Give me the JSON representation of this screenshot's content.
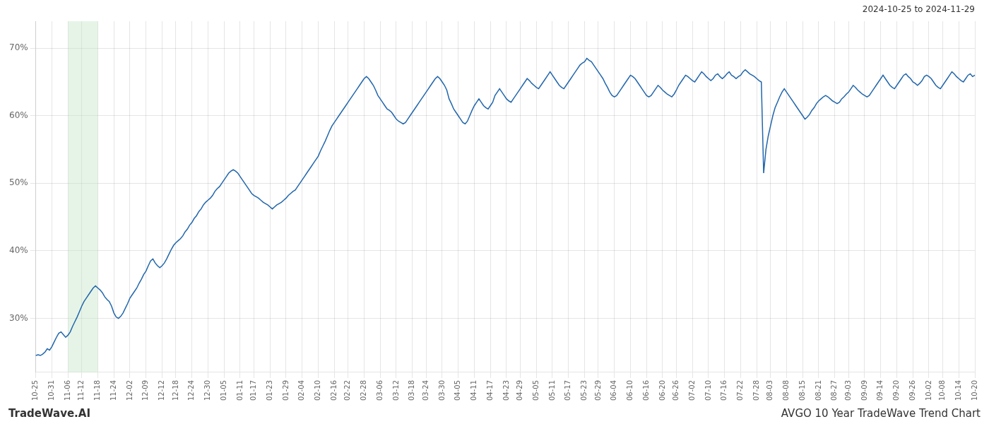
{
  "chart_data": {
    "type": "line",
    "title": "AVGO 10 Year TradeWave Trend Chart",
    "subtitle": "2024-10-25 to 2024-11-29",
    "annotations": [
      "TradeWave.AI"
    ],
    "color": "#2166ac",
    "grid": true,
    "legend": false,
    "ylim": [
      22,
      74
    ],
    "yticks": [
      {
        "value": 30,
        "label": "30%"
      },
      {
        "value": 40,
        "label": "40%"
      },
      {
        "value": 50,
        "label": "50%"
      },
      {
        "value": 60,
        "label": "60%"
      },
      {
        "value": 70,
        "label": "70%"
      }
    ],
    "shaded_span": {
      "from": "11-06",
      "to": "11-18",
      "color": "#c8e6c9"
    },
    "categories": [
      "10-25",
      null,
      null,
      null,
      null,
      null,
      null,
      "10-31",
      null,
      null,
      null,
      null,
      null,
      null,
      "11-06",
      null,
      null,
      null,
      null,
      null,
      "11-12",
      null,
      null,
      null,
      null,
      null,
      null,
      "11-18",
      null,
      null,
      null,
      null,
      null,
      null,
      "11-24",
      null,
      null,
      null,
      null,
      null,
      null,
      "12-02",
      null,
      null,
      null,
      null,
      null,
      null,
      "12-09",
      null,
      null,
      null,
      null,
      null,
      null,
      "12-12",
      null,
      null,
      null,
      null,
      null,
      "12-18",
      null,
      null,
      null,
      null,
      null,
      null,
      "12-24",
      null,
      null,
      null,
      null,
      null,
      null,
      "12-30",
      null,
      null,
      null,
      null,
      null,
      null,
      "01-05",
      null,
      null,
      null,
      null,
      null,
      null,
      "01-11",
      null,
      null,
      null,
      null,
      null,
      "01-17",
      null,
      null,
      null,
      null,
      null,
      null,
      "01-23",
      null,
      null,
      null,
      null,
      null,
      null,
      "01-29",
      null,
      null,
      null,
      null,
      null,
      null,
      "02-04",
      null,
      null,
      null,
      null,
      null,
      null,
      "02-10",
      null,
      null,
      null,
      null,
      null,
      null,
      "02-16",
      null,
      null,
      null,
      null,
      null,
      "02-22",
      null,
      null,
      null,
      null,
      null,
      null,
      "02-28",
      null,
      null,
      null,
      null,
      null,
      null,
      "03-06",
      null,
      null,
      null,
      null,
      null,
      null,
      "03-12",
      null,
      null,
      null,
      null,
      null,
      null,
      "03-18",
      null,
      null,
      null,
      null,
      null,
      "03-24",
      null,
      null,
      null,
      null,
      null,
      null,
      "03-30",
      null,
      null,
      null,
      null,
      null,
      null,
      "04-05",
      null,
      null,
      null,
      null,
      null,
      null,
      "04-11",
      null,
      null,
      null,
      null,
      null,
      null,
      "04-17",
      null,
      null,
      null,
      null,
      null,
      null,
      "04-23",
      null,
      null,
      null,
      null,
      null,
      "04-29",
      null,
      null,
      null,
      null,
      null,
      null,
      "05-05",
      null,
      null,
      null,
      null,
      null,
      null,
      "05-11",
      null,
      null,
      null,
      null,
      null,
      null,
      "05-17",
      null,
      null,
      null,
      null,
      null,
      null,
      "05-23",
      null,
      null,
      null,
      null,
      null,
      "05-29",
      null,
      null,
      null,
      null,
      null,
      null,
      "06-04",
      null,
      null,
      null,
      null,
      null,
      null,
      "06-10",
      null,
      null,
      null,
      null,
      null,
      null,
      "06-16",
      null,
      null,
      null,
      null,
      null,
      null,
      "06-20",
      null,
      null,
      null,
      null,
      null,
      "06-26",
      null,
      null,
      null,
      null,
      null,
      null,
      "07-02",
      null,
      null,
      null,
      null,
      null,
      null,
      "07-10",
      null,
      null,
      null,
      null,
      null,
      null,
      "07-16",
      null,
      null,
      null,
      null,
      null,
      null,
      "07-22",
      null,
      null,
      null,
      null,
      null,
      null,
      "07-28",
      null,
      null,
      null,
      null,
      null,
      "08-03",
      null,
      null,
      null,
      null,
      null,
      null,
      "08-08",
      null,
      null,
      null,
      null,
      null,
      null,
      "08-15",
      null,
      null,
      null,
      null,
      null,
      null,
      "08-21",
      null,
      null,
      null,
      null,
      null,
      null,
      "08-27",
      null,
      null,
      null,
      null,
      null,
      "09-03",
      null,
      null,
      null,
      null,
      null,
      null,
      "09-09",
      null,
      null,
      null,
      null,
      null,
      null,
      "09-14",
      null,
      null,
      null,
      null,
      null,
      null,
      "09-20",
      null,
      null,
      null,
      null,
      null,
      null,
      "09-26",
      null,
      null,
      null,
      null,
      null,
      null,
      "10-02",
      null,
      null,
      null,
      null,
      null,
      "10-08",
      null,
      null,
      null,
      null,
      null,
      null,
      "10-14",
      null,
      null,
      null,
      null,
      null,
      null,
      "10-20"
    ],
    "values": [
      24.5,
      24.6,
      24.5,
      24.7,
      25.0,
      25.5,
      25.3,
      25.8,
      26.5,
      27.2,
      27.8,
      28.0,
      27.6,
      27.2,
      27.5,
      28.0,
      28.8,
      29.5,
      30.2,
      31.0,
      31.8,
      32.5,
      33.0,
      33.5,
      34.0,
      34.5,
      34.8,
      34.5,
      34.2,
      33.8,
      33.2,
      32.8,
      32.5,
      31.8,
      30.8,
      30.2,
      30.0,
      30.3,
      30.8,
      31.5,
      32.2,
      33.0,
      33.5,
      34.0,
      34.5,
      35.2,
      35.8,
      36.5,
      37.0,
      37.8,
      38.5,
      38.8,
      38.2,
      37.8,
      37.5,
      37.8,
      38.2,
      38.8,
      39.5,
      40.2,
      40.8,
      41.2,
      41.5,
      41.8,
      42.2,
      42.8,
      43.2,
      43.8,
      44.2,
      44.8,
      45.2,
      45.8,
      46.2,
      46.8,
      47.2,
      47.5,
      47.8,
      48.2,
      48.8,
      49.2,
      49.5,
      50.0,
      50.5,
      51.0,
      51.5,
      51.8,
      52.0,
      51.8,
      51.5,
      51.0,
      50.5,
      50.0,
      49.5,
      49.0,
      48.5,
      48.2,
      48.0,
      47.8,
      47.5,
      47.2,
      47.0,
      46.8,
      46.5,
      46.2,
      46.5,
      46.8,
      47.0,
      47.2,
      47.5,
      47.8,
      48.2,
      48.5,
      48.8,
      49.0,
      49.5,
      50.0,
      50.5,
      51.0,
      51.5,
      52.0,
      52.5,
      53.0,
      53.5,
      54.0,
      54.8,
      55.5,
      56.2,
      57.0,
      57.8,
      58.5,
      59.0,
      59.5,
      60.0,
      60.5,
      61.0,
      61.5,
      62.0,
      62.5,
      63.0,
      63.5,
      64.0,
      64.5,
      65.0,
      65.5,
      65.8,
      65.5,
      65.0,
      64.5,
      63.8,
      63.0,
      62.5,
      62.0,
      61.5,
      61.0,
      60.8,
      60.5,
      60.0,
      59.5,
      59.2,
      59.0,
      58.8,
      59.0,
      59.5,
      60.0,
      60.5,
      61.0,
      61.5,
      62.0,
      62.5,
      63.0,
      63.5,
      64.0,
      64.5,
      65.0,
      65.5,
      65.8,
      65.5,
      65.0,
      64.5,
      63.8,
      62.5,
      61.8,
      61.0,
      60.5,
      60.0,
      59.5,
      59.0,
      58.8,
      59.2,
      60.0,
      60.8,
      61.5,
      62.0,
      62.5,
      62.0,
      61.5,
      61.2,
      61.0,
      61.5,
      62.0,
      63.0,
      63.5,
      64.0,
      63.5,
      63.0,
      62.5,
      62.2,
      62.0,
      62.5,
      63.0,
      63.5,
      64.0,
      64.5,
      65.0,
      65.5,
      65.2,
      64.8,
      64.5,
      64.2,
      64.0,
      64.5,
      65.0,
      65.5,
      66.0,
      66.5,
      66.0,
      65.5,
      65.0,
      64.5,
      64.2,
      64.0,
      64.5,
      65.0,
      65.5,
      66.0,
      66.5,
      67.0,
      67.5,
      67.8,
      68.0,
      68.5,
      68.2,
      68.0,
      67.5,
      67.0,
      66.5,
      66.0,
      65.5,
      64.8,
      64.2,
      63.5,
      63.0,
      62.8,
      63.0,
      63.5,
      64.0,
      64.5,
      65.0,
      65.5,
      66.0,
      65.8,
      65.5,
      65.0,
      64.5,
      64.0,
      63.5,
      63.0,
      62.8,
      63.0,
      63.5,
      64.0,
      64.5,
      64.2,
      63.8,
      63.5,
      63.2,
      63.0,
      62.8,
      63.2,
      63.8,
      64.5,
      65.0,
      65.5,
      66.0,
      65.8,
      65.5,
      65.2,
      65.0,
      65.5,
      66.0,
      66.5,
      66.2,
      65.8,
      65.5,
      65.2,
      65.5,
      66.0,
      66.2,
      65.8,
      65.5,
      65.8,
      66.2,
      66.5,
      66.0,
      65.8,
      65.5,
      65.8,
      66.0,
      66.5,
      66.8,
      66.5,
      66.2,
      66.0,
      65.8,
      65.5,
      65.2,
      65.0,
      51.5,
      55.0,
      57.0,
      58.5,
      60.0,
      61.2,
      62.0,
      62.8,
      63.5,
      64.0,
      63.5,
      63.0,
      62.5,
      62.0,
      61.5,
      61.0,
      60.5,
      60.0,
      59.5,
      59.8,
      60.2,
      60.8,
      61.2,
      61.8,
      62.2,
      62.5,
      62.8,
      63.0,
      62.8,
      62.5,
      62.2,
      62.0,
      61.8,
      62.0,
      62.5,
      62.8,
      63.2,
      63.5,
      64.0,
      64.5,
      64.2,
      63.8,
      63.5,
      63.2,
      63.0,
      62.8,
      63.0,
      63.5,
      64.0,
      64.5,
      65.0,
      65.5,
      66.0,
      65.5,
      65.0,
      64.5,
      64.2,
      64.0,
      64.5,
      65.0,
      65.5,
      66.0,
      66.2,
      65.8,
      65.5,
      65.0,
      64.8,
      64.5,
      64.8,
      65.2,
      65.8,
      66.0,
      65.8,
      65.5,
      65.0,
      64.5,
      64.2,
      64.0,
      64.5,
      65.0,
      65.5,
      66.0,
      66.5,
      66.2,
      65.8,
      65.5,
      65.2,
      65.0,
      65.5,
      66.0,
      66.2,
      65.8,
      66.0
    ]
  }
}
